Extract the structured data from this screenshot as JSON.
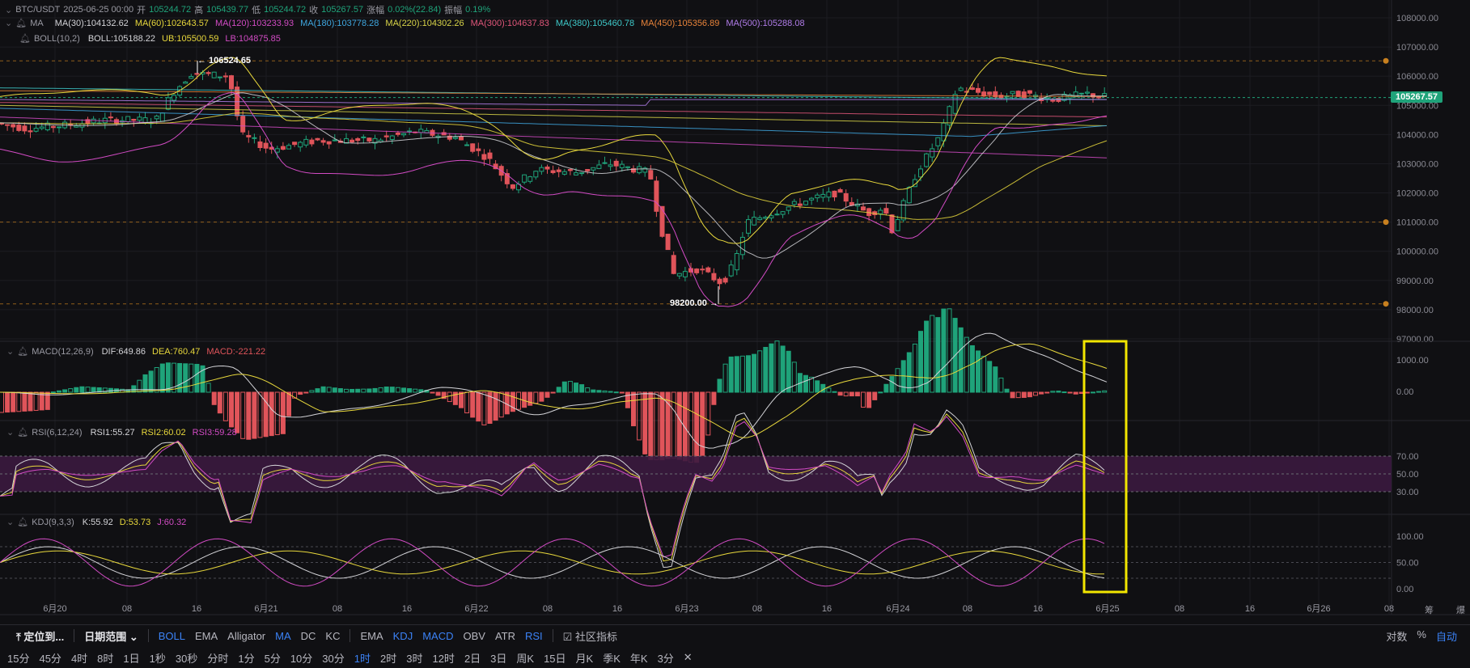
{
  "header": {
    "symbol": "BTC/USDT",
    "datetime": "2025-06-25 00:00",
    "open_label": "开",
    "open": "105244.72",
    "high_label": "高",
    "high": "105439.77",
    "low_label": "低",
    "low": "105244.72",
    "close_label": "收",
    "close": "105267.57",
    "chg_label": "涨幅",
    "chg": "0.02%(22.84)",
    "amp_label": "振幅",
    "amp": "0.19%"
  },
  "ma_row": {
    "name": "MA",
    "items": [
      {
        "text": "MA(30):104132.62",
        "color": "#d4d4d8"
      },
      {
        "text": "MA(60):102643.57",
        "color": "#e8d83c"
      },
      {
        "text": "MA(120):103233.93",
        "color": "#d24bc4"
      },
      {
        "text": "MA(180):103778.28",
        "color": "#3fa7e0"
      },
      {
        "text": "MA(220):104302.26",
        "color": "#d8d448"
      },
      {
        "text": "MA(300):104637.83",
        "color": "#e0567a"
      },
      {
        "text": "MA(380):105460.78",
        "color": "#3ec9c9"
      },
      {
        "text": "MA(450):105356.89",
        "color": "#e9843a"
      },
      {
        "text": "MA(500):105288.08",
        "color": "#b07ce8"
      }
    ]
  },
  "boll_row": {
    "name": "BOLL(10,2)",
    "items": [
      {
        "text": "BOLL:105188.22",
        "color": "#d4d4d8"
      },
      {
        "text": "UB:105500.59",
        "color": "#e8d83c"
      },
      {
        "text": "LB:104875.85",
        "color": "#d24bc4"
      }
    ]
  },
  "macd_row": {
    "name": "MACD(12,26,9)",
    "items": [
      {
        "text": "DIF:649.86",
        "color": "#d4d4d8"
      },
      {
        "text": "DEA:760.47",
        "color": "#e8d83c"
      },
      {
        "text": "MACD:-221.22",
        "color": "#e0545a"
      }
    ]
  },
  "rsi_row": {
    "name": "RSI(6,12,24)",
    "items": [
      {
        "text": "RSI1:55.27",
        "color": "#d4d4d8"
      },
      {
        "text": "RSI2:60.02",
        "color": "#e8d83c"
      },
      {
        "text": "RSI3:59.28",
        "color": "#d24bc4"
      }
    ]
  },
  "kdj_row": {
    "name": "KDJ(9,3,3)",
    "items": [
      {
        "text": "K:55.92",
        "color": "#d4d4d8"
      },
      {
        "text": "D:53.73",
        "color": "#e8d83c"
      },
      {
        "text": "J:60.32",
        "color": "#d24bc4"
      }
    ]
  },
  "price_axis": [
    "108000.00",
    "107000.00",
    "106000.00",
    "105000.00",
    "104000.00",
    "103000.00",
    "102000.00",
    "101000.00",
    "100000.00",
    "99000.00",
    "98000.00",
    "97000.00"
  ],
  "macd_axis": [
    "1000.00",
    "0.00"
  ],
  "rsi_axis": [
    "70.00",
    "50.00",
    "30.00"
  ],
  "kdj_axis": [
    "100.00",
    "50.00",
    "0.00"
  ],
  "time_axis": [
    "6月20",
    "08",
    "16",
    "6月21",
    "08",
    "16",
    "6月22",
    "08",
    "16",
    "6月23",
    "08",
    "16",
    "6月24",
    "08",
    "16",
    "6月25",
    "08",
    "16",
    "6月26",
    "08"
  ],
  "last_price_tag": "105267.57",
  "high_annotation": "← 106524.65",
  "low_annotation": "98200.00 →",
  "corner_label": "筹",
  "corner_label2": "爆",
  "toolbar1": {
    "locate": "定位到...",
    "date_range": "日期范围",
    "main_indicators": [
      "BOLL",
      "EMA",
      "Alligator",
      "MA",
      "DC",
      "KC"
    ],
    "main_active": [
      "BOLL",
      "MA"
    ],
    "sub_indicators": [
      "EMA",
      "KDJ",
      "MACD",
      "OBV",
      "ATR",
      "RSI"
    ],
    "sub_active": [
      "KDJ",
      "MACD",
      "RSI"
    ],
    "community": "社区指标",
    "right": [
      "对数",
      "%",
      "自动"
    ]
  },
  "toolbar2": {
    "intervals": [
      "15分",
      "45分",
      "4时",
      "8时",
      "1日",
      "1秒",
      "30秒",
      "分时",
      "1分",
      "5分",
      "10分",
      "30分",
      "1时",
      "2时",
      "3时",
      "12时",
      "2日",
      "3日",
      "周K",
      "15日",
      "月K",
      "季K",
      "年K",
      "3分"
    ],
    "active": "1时",
    "close": "✕"
  },
  "chart_data": {
    "type": "candlestick",
    "interval": "1h",
    "price_range": [
      97000,
      108000
    ],
    "key_levels": [
      106524.65,
      98200.0
    ],
    "last_close": 105267.57,
    "macd": {
      "dif": 649.86,
      "dea": 760.47,
      "macd": -221.22
    },
    "rsi": {
      "rsi1": 55.27,
      "rsi2": 60.02,
      "rsi3": 59.28,
      "bands": [
        30,
        50,
        70
      ]
    },
    "kdj": {
      "k": 55.92,
      "d": 53.73,
      "j": 60.32,
      "bands": [
        0,
        20,
        50,
        80,
        100
      ]
    },
    "ma": {
      "MA30": 104132.62,
      "MA60": 102643.57,
      "MA120": 103233.93,
      "MA180": 103778.28,
      "MA220": 104302.26,
      "MA300": 104637.83,
      "MA380": 105460.78,
      "MA450": 105356.89,
      "MA500": 105288.08
    },
    "boll": {
      "mid": 105188.22,
      "ub": 105500.59,
      "lb": 104875.85
    }
  }
}
